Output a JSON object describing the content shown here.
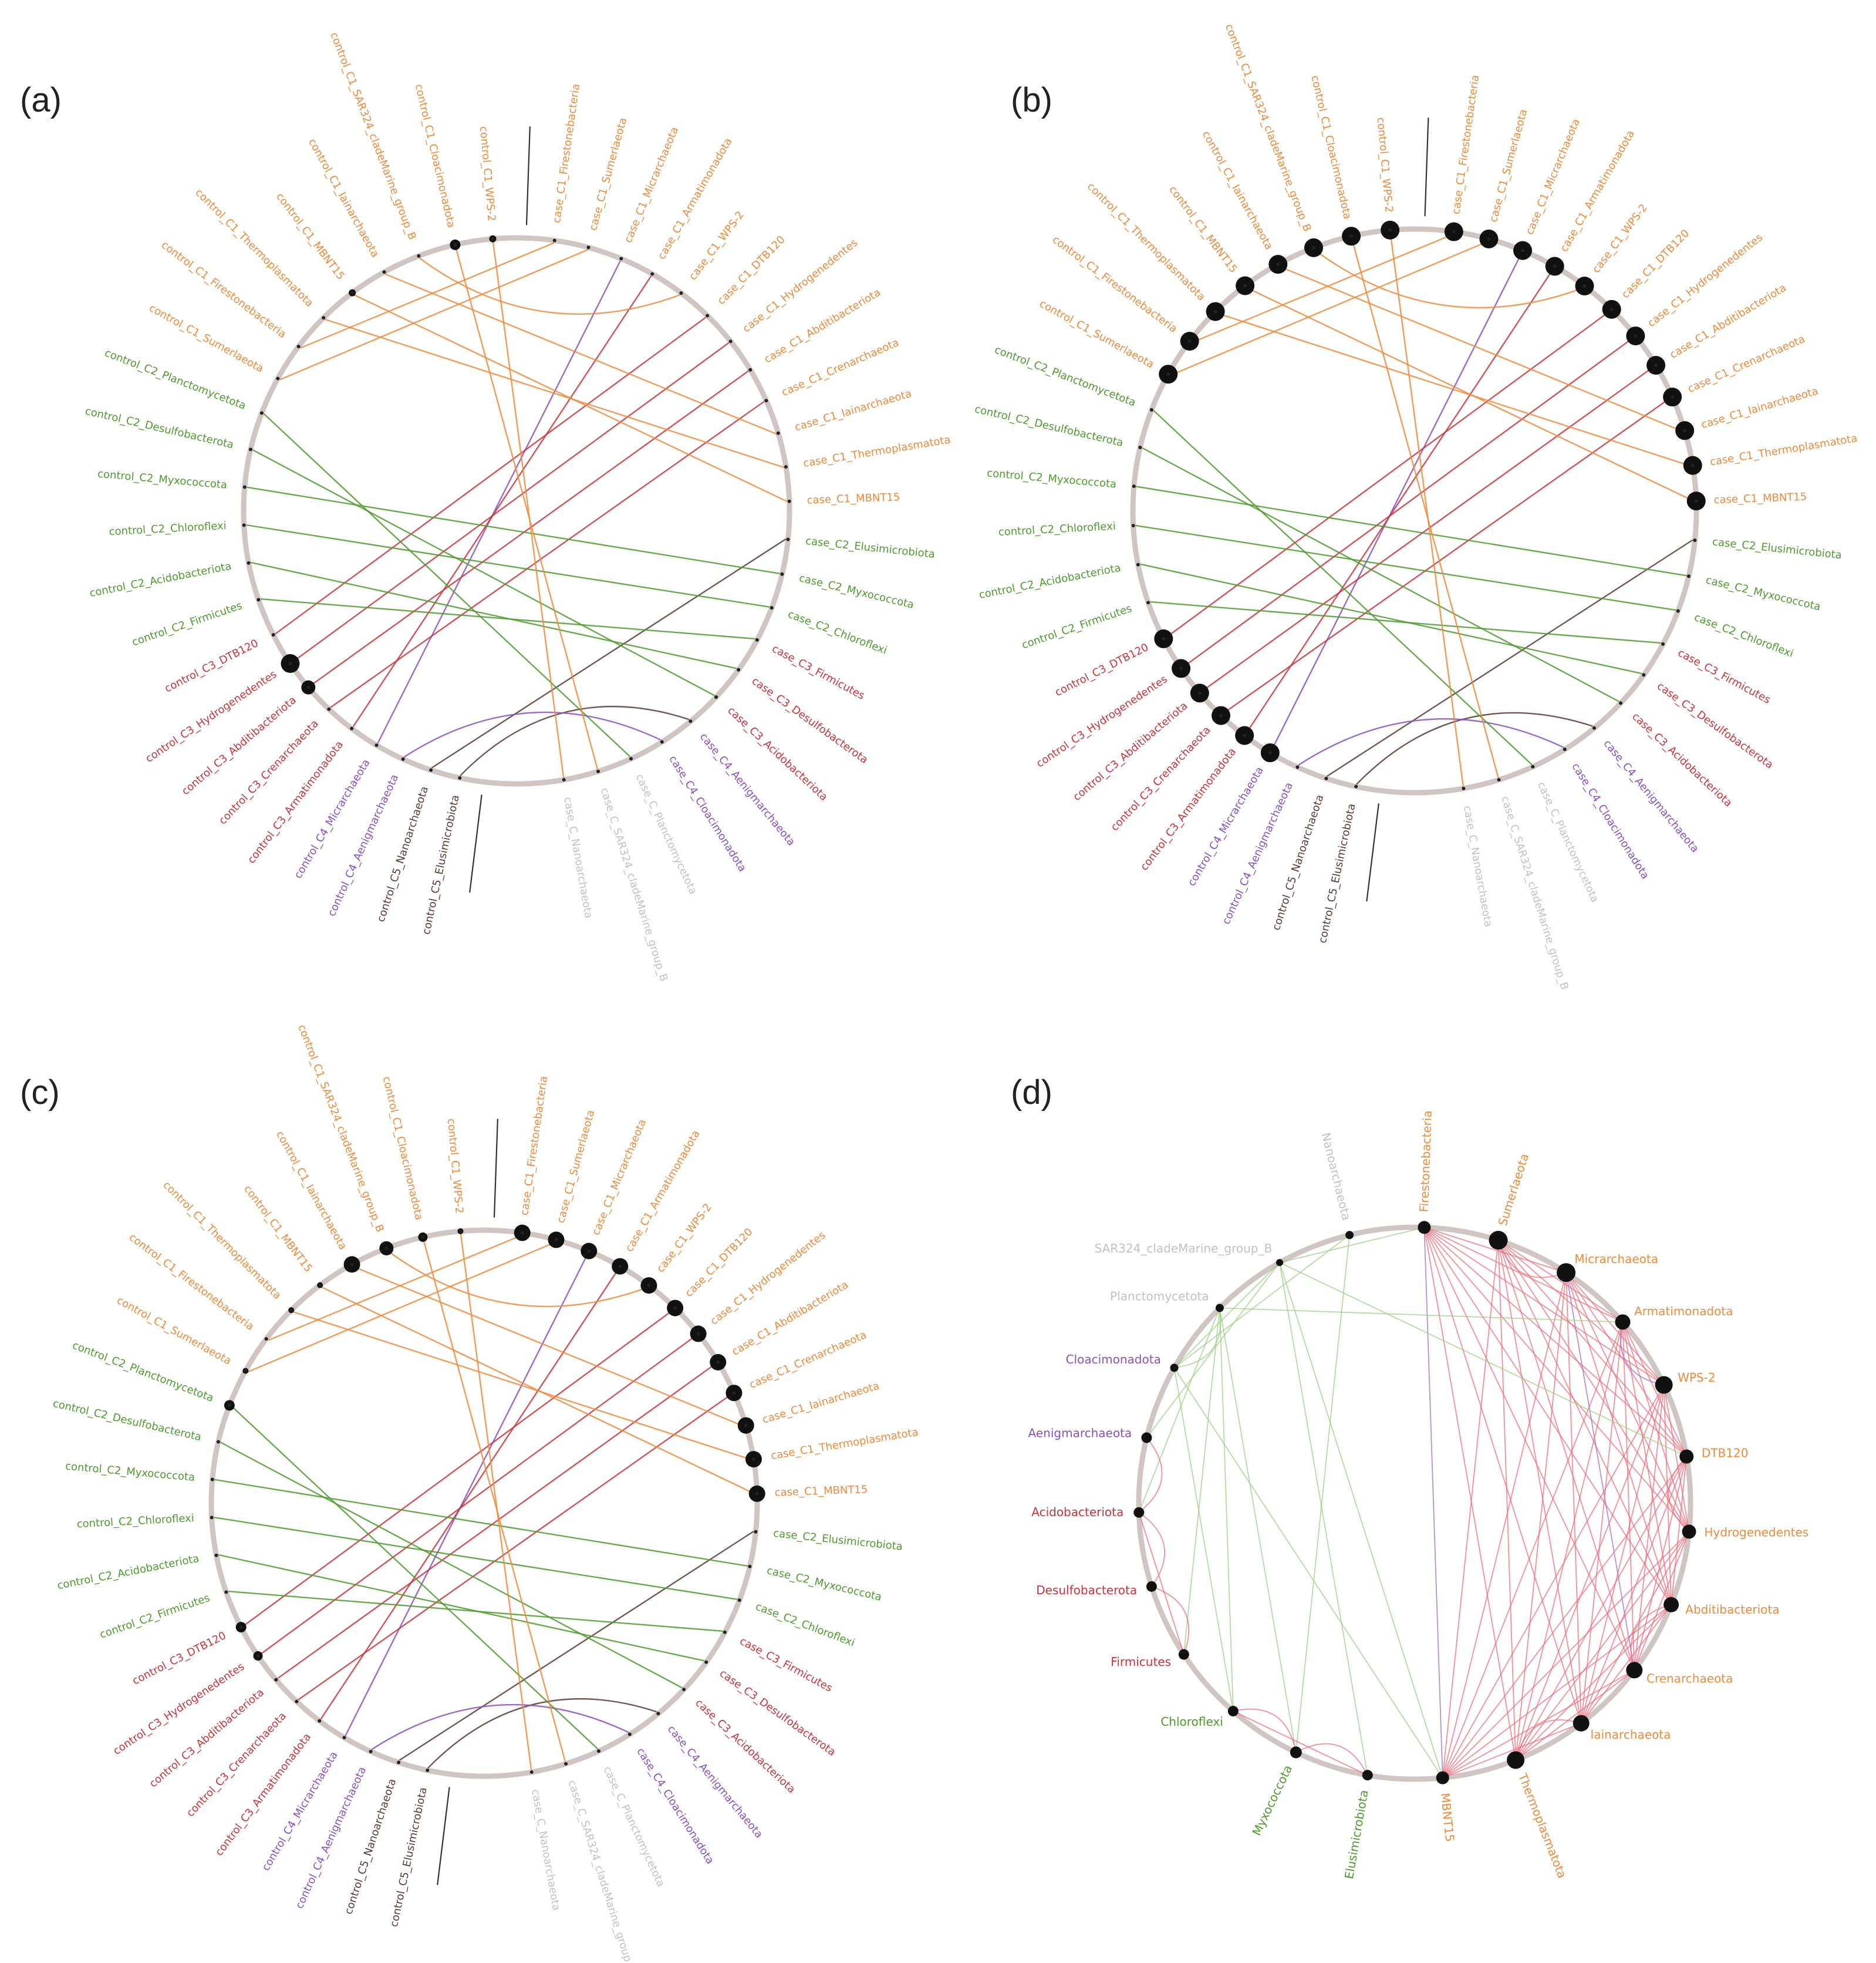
{
  "colors": {
    "C1": "#ee8a3c",
    "C2": "#4e9a2f",
    "C3": "#c8343a",
    "C4": "#8c4fc0",
    "C5": "#5a3a34",
    "C": "#c2c2c2",
    "ring": "#cfc6c3",
    "node": "#111111",
    "d_edge_red": "#ee6a7a",
    "d_edge_green": "#9ccd84",
    "d_edge_purple": "#9a6cc8"
  },
  "labels": {
    "panel_a": "(a)",
    "panel_b": "(b)",
    "panel_c": "(c)",
    "panel_d": "(d)"
  },
  "bipartite_nodes": [
    {
      "label": "case_C1_Firestonebacteria",
      "group": "C1"
    },
    {
      "label": "case_C1_Sumerlaeota",
      "group": "C1"
    },
    {
      "label": "case_C1_Micrarchaeota",
      "group": "C1"
    },
    {
      "label": "case_C1_Armatimonadota",
      "group": "C1"
    },
    {
      "label": "case_C1_WPS-2",
      "group": "C1"
    },
    {
      "label": "case_C1_DTB120",
      "group": "C1"
    },
    {
      "label": "case_C1_Hydrogenedentes",
      "group": "C1"
    },
    {
      "label": "case_C1_Abditibacteriota",
      "group": "C1"
    },
    {
      "label": "case_C1_Crenarchaeota",
      "group": "C1"
    },
    {
      "label": "case_C1_Iainarchaeota",
      "group": "C1"
    },
    {
      "label": "case_C1_Thermoplasmatota",
      "group": "C1"
    },
    {
      "label": "case_C1_MBNT15",
      "group": "C1"
    },
    {
      "label": "case_C2_Elusimicrobiota",
      "group": "C2"
    },
    {
      "label": "case_C2_Myxococcota",
      "group": "C2"
    },
    {
      "label": "case_C2_Chloroflexi",
      "group": "C2"
    },
    {
      "label": "case_C3_Firmicutes",
      "group": "C3"
    },
    {
      "label": "case_C3_Desulfobacterota",
      "group": "C3"
    },
    {
      "label": "case_C3_Acidobacteriota",
      "group": "C3"
    },
    {
      "label": "case_C4_Aenigmarchaeota",
      "group": "C4"
    },
    {
      "label": "case_C4_Cloacimonadota",
      "group": "C4"
    },
    {
      "label": "case_C_Planctomycetota",
      "group": "C"
    },
    {
      "label": "case_C_SAR324_cladeMarine_group_B",
      "group": "C"
    },
    {
      "label": "case_C_Nanoarchaeota",
      "group": "C"
    },
    {
      "label": "control_C5_Elusimicrobiota",
      "group": "C5"
    },
    {
      "label": "control_C5_Nanoarchaeota",
      "group": "C5"
    },
    {
      "label": "control_C4_Aenigmarchaeota",
      "group": "C4"
    },
    {
      "label": "control_C4_Micrarchaeota",
      "group": "C4"
    },
    {
      "label": "control_C3_Armatimonadota",
      "group": "C3"
    },
    {
      "label": "control_C3_Crenarchaeota",
      "group": "C3"
    },
    {
      "label": "control_C3_Abditibacteriota",
      "group": "C3"
    },
    {
      "label": "control_C3_Hydrogenedentes",
      "group": "C3"
    },
    {
      "label": "control_C3_DTB120",
      "group": "C3"
    },
    {
      "label": "control_C2_Firmicutes",
      "group": "C2"
    },
    {
      "label": "control_C2_Acidobacteriota",
      "group": "C2"
    },
    {
      "label": "control_C2_Chloroflexi",
      "group": "C2"
    },
    {
      "label": "control_C2_Myxococcota",
      "group": "C2"
    },
    {
      "label": "control_C2_Desulfobacterota",
      "group": "C2"
    },
    {
      "label": "control_C2_Planctomycetota",
      "group": "C2"
    },
    {
      "label": "control_C1_Sumerlaeota",
      "group": "C1"
    },
    {
      "label": "control_C1_Firestonebacteria",
      "group": "C1"
    },
    {
      "label": "control_C1_Thermoplasmatota",
      "group": "C1"
    },
    {
      "label": "control_C1_MBNT15",
      "group": "C1"
    },
    {
      "label": "control_C1_Iainarchaeota",
      "group": "C1"
    },
    {
      "label": "control_C1_SAR324_cladeMarine_group_B",
      "group": "C1"
    },
    {
      "label": "control_C1_Cloacimonadota",
      "group": "C1"
    },
    {
      "label": "control_C1_WPS-2",
      "group": "C1"
    }
  ],
  "bipartite_edges": [
    [
      0,
      39,
      "C1"
    ],
    [
      1,
      38,
      "C1"
    ],
    [
      2,
      26,
      "C4"
    ],
    [
      3,
      27,
      "C3"
    ],
    [
      4,
      43,
      "C1"
    ],
    [
      5,
      31,
      "C3"
    ],
    [
      6,
      30,
      "C3"
    ],
    [
      7,
      29,
      "C3"
    ],
    [
      8,
      28,
      "C3"
    ],
    [
      9,
      42,
      "C1"
    ],
    [
      10,
      40,
      "C1"
    ],
    [
      11,
      41,
      "C1"
    ],
    [
      12,
      24,
      "C5"
    ],
    [
      13,
      35,
      "C2"
    ],
    [
      14,
      34,
      "C2"
    ],
    [
      15,
      32,
      "C2"
    ],
    [
      16,
      33,
      "C2"
    ],
    [
      17,
      36,
      "C2"
    ],
    [
      18,
      23,
      "C5"
    ],
    [
      19,
      25,
      "C4"
    ],
    [
      20,
      37,
      "C2"
    ],
    [
      21,
      44,
      "C1"
    ],
    [
      22,
      45,
      "C1"
    ]
  ],
  "panel_a_nodes": [
    [
      29,
      12
    ],
    [
      30,
      16
    ],
    [
      41,
      6
    ],
    [
      44,
      9
    ],
    [
      45,
      6
    ]
  ],
  "panel_b_nodes": [
    [
      0,
      16
    ],
    [
      1,
      16
    ],
    [
      2,
      16
    ],
    [
      3,
      16
    ],
    [
      4,
      16
    ],
    [
      5,
      16
    ],
    [
      6,
      16
    ],
    [
      7,
      16
    ],
    [
      8,
      16
    ],
    [
      9,
      16
    ],
    [
      10,
      16
    ],
    [
      11,
      16
    ],
    [
      26,
      16
    ],
    [
      27,
      16
    ],
    [
      28,
      16
    ],
    [
      29,
      16
    ],
    [
      30,
      16
    ],
    [
      31,
      16
    ],
    [
      38,
      16
    ],
    [
      39,
      16
    ],
    [
      40,
      16
    ],
    [
      41,
      16
    ],
    [
      42,
      16
    ],
    [
      43,
      16
    ],
    [
      44,
      16
    ],
    [
      45,
      16
    ]
  ],
  "panel_c_nodes": [
    [
      0,
      14
    ],
    [
      1,
      14
    ],
    [
      2,
      14
    ],
    [
      3,
      14
    ],
    [
      4,
      14
    ],
    [
      5,
      14
    ],
    [
      6,
      14
    ],
    [
      7,
      14
    ],
    [
      8,
      14
    ],
    [
      9,
      14
    ],
    [
      10,
      14
    ],
    [
      11,
      14
    ],
    [
      30,
      8
    ],
    [
      31,
      9
    ],
    [
      37,
      9
    ],
    [
      38,
      5
    ],
    [
      40,
      5
    ],
    [
      41,
      5
    ],
    [
      42,
      14
    ],
    [
      43,
      12
    ],
    [
      44,
      8
    ],
    [
      45,
      5
    ]
  ],
  "network_nodes": [
    {
      "label": "Firestonebacteria",
      "group": "C1",
      "size": 11
    },
    {
      "label": "Sumerlaeota",
      "group": "C1",
      "size": 16
    },
    {
      "label": "Micrarchaeota",
      "group": "C1",
      "size": 16
    },
    {
      "label": "Armatimonadota",
      "group": "C1",
      "size": 13
    },
    {
      "label": "WPS-2",
      "group": "C1",
      "size": 15
    },
    {
      "label": "DTB120",
      "group": "C1",
      "size": 12
    },
    {
      "label": "Hydrogenedentes",
      "group": "C1",
      "size": 12
    },
    {
      "label": "Abditibacteriota",
      "group": "C1",
      "size": 13
    },
    {
      "label": "Crenarchaeota",
      "group": "C1",
      "size": 14
    },
    {
      "label": "Iainarchaeota",
      "group": "C1",
      "size": 14
    },
    {
      "label": "Thermoplasmatota",
      "group": "C1",
      "size": 15
    },
    {
      "label": "MBNT15",
      "group": "C1",
      "size": 11
    },
    {
      "label": "Elusimicrobiota",
      "group": "C2",
      "size": 9
    },
    {
      "label": "Myxococcota",
      "group": "C2",
      "size": 10
    },
    {
      "label": "Chloroflexi",
      "group": "C2",
      "size": 9
    },
    {
      "label": "Firmicutes",
      "group": "C3",
      "size": 9
    },
    {
      "label": "Desulfobacterota",
      "group": "C3",
      "size": 9
    },
    {
      "label": "Acidobacteriota",
      "group": "C3",
      "size": 9
    },
    {
      "label": "Aenigmarchaeota",
      "group": "C4",
      "size": 9
    },
    {
      "label": "Cloacimonadota",
      "group": "C4",
      "size": 7
    },
    {
      "label": "Planctomycetota",
      "group": "C",
      "size": 7
    },
    {
      "label": "SAR324_cladeMarine_group_B",
      "group": "C",
      "size": 6
    },
    {
      "label": "Nanoarchaeota",
      "group": "C",
      "size": 7
    }
  ],
  "network_edges": [
    [
      0,
      2,
      "red"
    ],
    [
      0,
      3,
      "red"
    ],
    [
      0,
      4,
      "red"
    ],
    [
      0,
      5,
      "red"
    ],
    [
      0,
      6,
      "red"
    ],
    [
      0,
      7,
      "red"
    ],
    [
      0,
      8,
      "red"
    ],
    [
      0,
      9,
      "red"
    ],
    [
      0,
      10,
      "red"
    ],
    [
      0,
      11,
      "purple"
    ],
    [
      1,
      3,
      "red"
    ],
    [
      1,
      4,
      "red"
    ],
    [
      1,
      5,
      "red"
    ],
    [
      1,
      6,
      "red"
    ],
    [
      1,
      7,
      "red"
    ],
    [
      1,
      8,
      "red"
    ],
    [
      1,
      9,
      "red"
    ],
    [
      1,
      10,
      "red"
    ],
    [
      1,
      11,
      "red"
    ],
    [
      2,
      4,
      "red"
    ],
    [
      2,
      5,
      "red"
    ],
    [
      2,
      6,
      "red"
    ],
    [
      2,
      7,
      "red"
    ],
    [
      2,
      8,
      "purple"
    ],
    [
      2,
      9,
      "red"
    ],
    [
      2,
      10,
      "red"
    ],
    [
      2,
      11,
      "red"
    ],
    [
      3,
      5,
      "red"
    ],
    [
      3,
      6,
      "red"
    ],
    [
      3,
      7,
      "red"
    ],
    [
      3,
      8,
      "red"
    ],
    [
      3,
      9,
      "red"
    ],
    [
      3,
      10,
      "red"
    ],
    [
      3,
      11,
      "red"
    ],
    [
      4,
      6,
      "red"
    ],
    [
      4,
      7,
      "red"
    ],
    [
      4,
      8,
      "red"
    ],
    [
      4,
      9,
      "red"
    ],
    [
      4,
      10,
      "red"
    ],
    [
      4,
      11,
      "red"
    ],
    [
      5,
      7,
      "red"
    ],
    [
      5,
      8,
      "red"
    ],
    [
      5,
      9,
      "red"
    ],
    [
      5,
      10,
      "red"
    ],
    [
      5,
      11,
      "red"
    ],
    [
      6,
      8,
      "red"
    ],
    [
      6,
      9,
      "red"
    ],
    [
      6,
      10,
      "red"
    ],
    [
      6,
      11,
      "red"
    ],
    [
      7,
      9,
      "red"
    ],
    [
      7,
      10,
      "red"
    ],
    [
      7,
      11,
      "red"
    ],
    [
      8,
      10,
      "red"
    ],
    [
      8,
      11,
      "red"
    ],
    [
      9,
      11,
      "red"
    ],
    [
      2,
      1,
      "red"
    ],
    [
      4,
      3,
      "purple"
    ],
    [
      6,
      5,
      "red"
    ],
    [
      8,
      7,
      "red"
    ],
    [
      10,
      9,
      "red"
    ],
    [
      21,
      0,
      "green"
    ],
    [
      21,
      11,
      "green"
    ],
    [
      21,
      12,
      "green"
    ],
    [
      21,
      19,
      "green"
    ],
    [
      21,
      18,
      "green"
    ],
    [
      21,
      5,
      "green"
    ],
    [
      20,
      14,
      "green"
    ],
    [
      20,
      13,
      "green"
    ],
    [
      20,
      15,
      "green"
    ],
    [
      20,
      3,
      "green"
    ],
    [
      20,
      17,
      "green"
    ],
    [
      19,
      11,
      "green"
    ],
    [
      19,
      14,
      "green"
    ],
    [
      19,
      20,
      "green"
    ],
    [
      22,
      13,
      "green"
    ],
    [
      22,
      19,
      "green"
    ],
    [
      17,
      15,
      "red"
    ],
    [
      17,
      16,
      "red"
    ],
    [
      16,
      15,
      "red"
    ],
    [
      14,
      12,
      "red"
    ],
    [
      14,
      13,
      "red"
    ],
    [
      13,
      12,
      "red"
    ],
    [
      17,
      18,
      "red"
    ]
  ]
}
